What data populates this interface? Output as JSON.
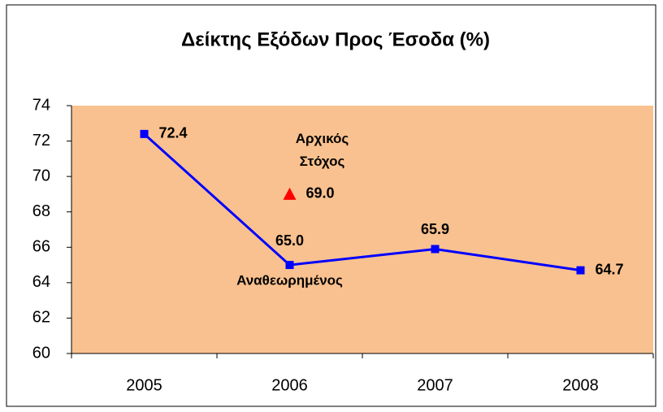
{
  "chart_data": {
    "type": "line",
    "title": "Δείκτης Εξόδων Προς Έσοδα (%)",
    "categories": [
      "2005",
      "2006",
      "2007",
      "2008"
    ],
    "series": [
      {
        "name": "Αναθεωρημένος",
        "color": "#0000FF",
        "values": [
          72.4,
          65.0,
          65.9,
          64.7
        ],
        "value_labels": [
          "72.4",
          "65.0",
          "65.9",
          "64.7"
        ]
      },
      {
        "name": "Αρχικός Στόχος",
        "color": "#FF0000",
        "values": [
          null,
          69.0,
          null,
          null
        ],
        "value_labels": [
          null,
          "69.0",
          null,
          null
        ]
      }
    ],
    "ylim": [
      60,
      74
    ],
    "yticks": [
      60,
      62,
      64,
      66,
      68,
      70,
      72,
      74
    ],
    "grid": false,
    "plot_background": "#F9C18F"
  }
}
